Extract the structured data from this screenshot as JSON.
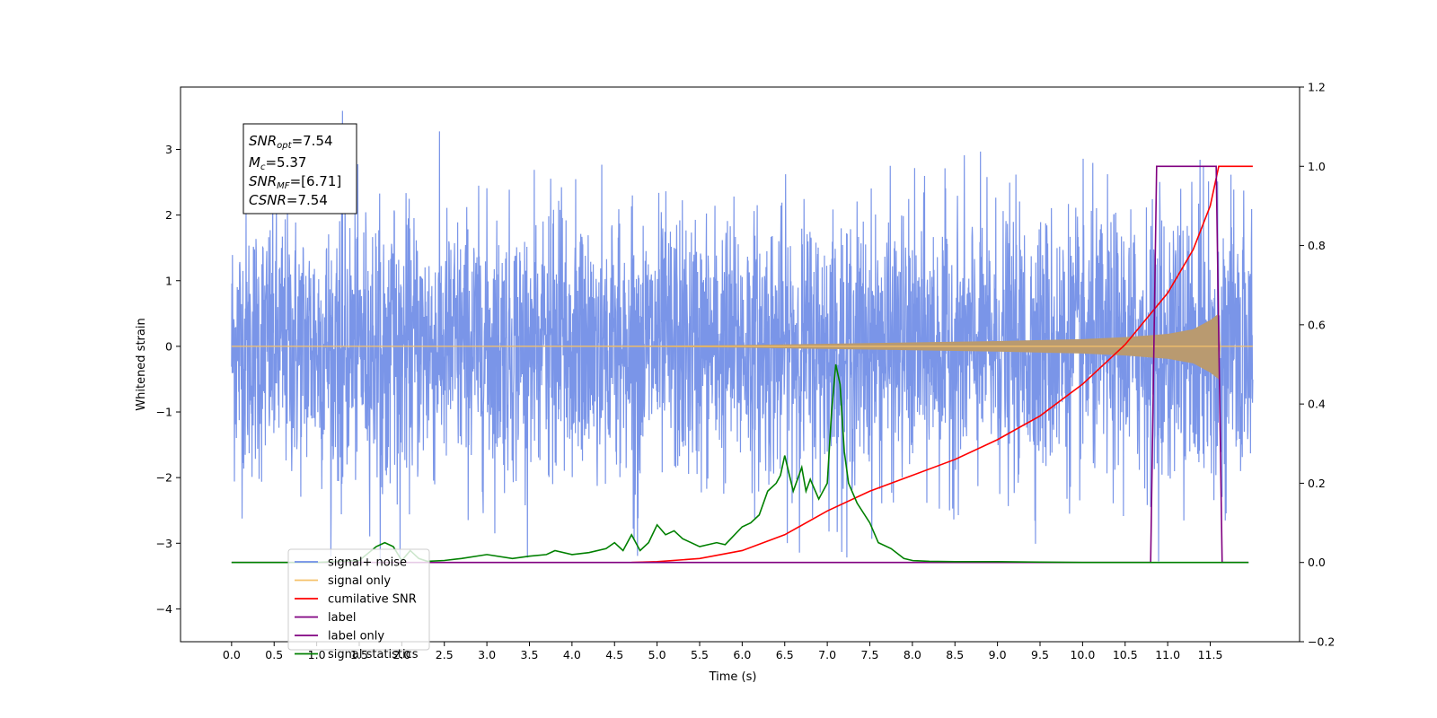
{
  "chart_data": {
    "type": "line",
    "xlabel": "Time (s)",
    "ylabel": "Whitened strain",
    "xlim": [
      -0.6,
      12.55
    ],
    "ylim_left": [
      -4.5,
      3.95
    ],
    "ylim_right": [
      -0.2,
      1.2
    ],
    "x_ticks": [
      "0.0",
      "0.5",
      "1.0",
      "1.5",
      "2.0",
      "2.5",
      "3.0",
      "3.5",
      "4.0",
      "4.5",
      "5.0",
      "5.5",
      "6.0",
      "6.5",
      "7.0",
      "7.5",
      "8.0",
      "8.5",
      "9.0",
      "9.5",
      "10.0",
      "10.5",
      "11.0",
      "11.5"
    ],
    "y_ticks_left": [
      "3",
      "2",
      "1",
      "0",
      "−1",
      "−2",
      "−3",
      "−4"
    ],
    "y_ticks_right": [
      "1.2",
      "1.0",
      "0.8",
      "0.6",
      "0.4",
      "0.2",
      "0.0",
      "−0.2"
    ],
    "stats_box": {
      "snr_opt": {
        "symbol": "SNR",
        "sub": "opt",
        "value": "=7.54"
      },
      "mc": {
        "symbol": "M",
        "sub": "c",
        "value": "=5.37"
      },
      "snr_mf": {
        "symbol": "SNR",
        "sub": "MF",
        "value": "=[6.71]"
      },
      "csnr": {
        "symbol": "CSNR",
        "value": "=7.54"
      }
    },
    "legend": {
      "position": "lower-left",
      "entries": [
        {
          "label": "signal+ noise",
          "color": "#6f8ee8"
        },
        {
          "label": "signal only",
          "color": "#f5c26b"
        },
        {
          "label": "cumilative SNR",
          "color": "#ff0000"
        },
        {
          "label": "label",
          "color": "#800080"
        },
        {
          "label": "label only",
          "color": "#800080"
        },
        {
          "label": "signal statistics",
          "color": "#008000"
        }
      ]
    },
    "series": [
      {
        "name": "signal+ noise",
        "axis": "left",
        "color": "#7a95e8",
        "description_values": {
          "x_range": [
            0.0,
            12.0
          ],
          "amplitude_std": 1.0,
          "range": [
            -3.3,
            3.6
          ]
        }
      },
      {
        "name": "signal only",
        "axis": "left",
        "color": "#f5c26b",
        "envelope": {
          "x": [
            0.0,
            5.0,
            6.0,
            7.0,
            8.0,
            9.0,
            10.0,
            10.5,
            11.0,
            11.3,
            11.5,
            11.6,
            11.62
          ],
          "amp": [
            0.0,
            0.01,
            0.02,
            0.04,
            0.06,
            0.08,
            0.11,
            0.14,
            0.19,
            0.26,
            0.4,
            0.5,
            0.0
          ]
        }
      },
      {
        "name": "cumilative SNR",
        "axis": "right",
        "color": "#ff0000",
        "x": [
          4.7,
          5.0,
          5.5,
          6.0,
          6.5,
          7.0,
          7.5,
          8.0,
          8.5,
          9.0,
          9.5,
          10.0,
          10.5,
          11.0,
          11.3,
          11.5,
          11.6,
          11.65,
          12.0
        ],
        "y": [
          0.0,
          0.002,
          0.01,
          0.03,
          0.07,
          0.13,
          0.18,
          0.22,
          0.26,
          0.31,
          0.37,
          0.45,
          0.55,
          0.68,
          0.79,
          0.9,
          1.0,
          1.0,
          1.0
        ]
      },
      {
        "name": "label",
        "axis": "right",
        "color": "#800080",
        "x": [
          0.0,
          10.8,
          10.87,
          11.57,
          11.64,
          11.95
        ],
        "y": [
          0.0,
          0.0,
          1.0,
          1.0,
          0.0,
          0.0
        ]
      },
      {
        "name": "signal statistics",
        "axis": "right",
        "color": "#008000",
        "x": [
          0.0,
          1.0,
          1.5,
          1.7,
          1.8,
          1.9,
          2.0,
          2.1,
          2.2,
          2.3,
          2.5,
          2.7,
          3.0,
          3.3,
          3.5,
          3.7,
          3.8,
          4.0,
          4.2,
          4.4,
          4.5,
          4.6,
          4.7,
          4.8,
          4.9,
          5.0,
          5.1,
          5.2,
          5.3,
          5.5,
          5.7,
          5.8,
          6.0,
          6.1,
          6.2,
          6.3,
          6.4,
          6.45,
          6.5,
          6.6,
          6.7,
          6.75,
          6.8,
          6.9,
          7.0,
          7.05,
          7.1,
          7.15,
          7.2,
          7.25,
          7.35,
          7.5,
          7.6,
          7.75,
          7.9,
          8.0,
          8.2,
          8.5,
          9.0,
          9.5,
          10.0,
          11.0,
          11.95
        ],
        "y": [
          0.0,
          0.0,
          0.005,
          0.04,
          0.05,
          0.04,
          0.005,
          0.03,
          0.01,
          0.003,
          0.005,
          0.01,
          0.02,
          0.01,
          0.016,
          0.02,
          0.03,
          0.02,
          0.025,
          0.035,
          0.05,
          0.03,
          0.07,
          0.03,
          0.05,
          0.095,
          0.07,
          0.08,
          0.06,
          0.04,
          0.05,
          0.045,
          0.09,
          0.1,
          0.12,
          0.18,
          0.2,
          0.22,
          0.27,
          0.18,
          0.24,
          0.18,
          0.21,
          0.16,
          0.2,
          0.38,
          0.5,
          0.45,
          0.28,
          0.2,
          0.15,
          0.1,
          0.05,
          0.035,
          0.01,
          0.005,
          0.003,
          0.002,
          0.002,
          0.001,
          0.0,
          0.0,
          0.0
        ]
      }
    ]
  }
}
